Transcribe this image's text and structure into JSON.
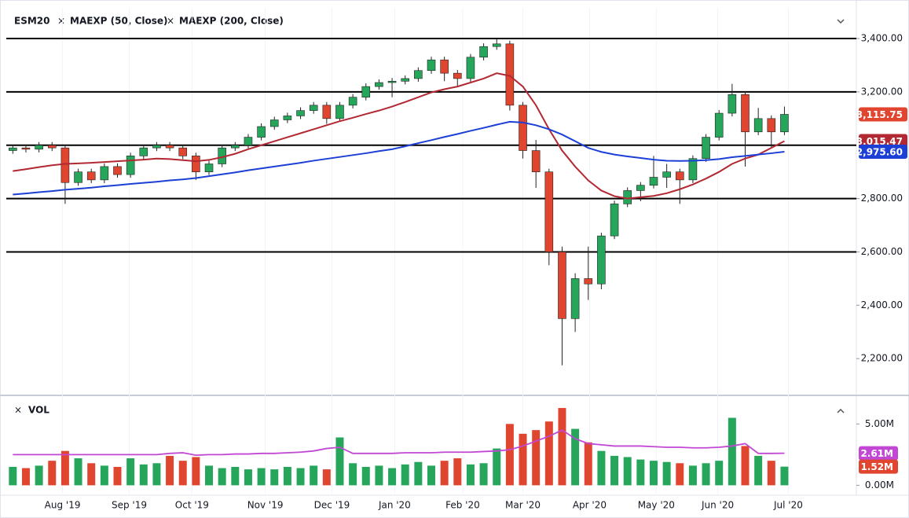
{
  "chart_data": {
    "type": "candlestick",
    "symbol": "ESM20",
    "indicators": [
      "MAEXP (50, Close)",
      "MAEXP (200, Close)"
    ],
    "volume_title": "VOL",
    "x": [
      0,
      1,
      2,
      3,
      4,
      5,
      6,
      7,
      8,
      9,
      10,
      11,
      12,
      13,
      14,
      15,
      16,
      17,
      18,
      19,
      20,
      21,
      22,
      23,
      24,
      25,
      26,
      27,
      28,
      29,
      30,
      31,
      32,
      33,
      34,
      35,
      36,
      37,
      38,
      39,
      40,
      41,
      42,
      43,
      44,
      45,
      46,
      47,
      48,
      49,
      50,
      51,
      52,
      53,
      54,
      55,
      56,
      57,
      58,
      59
    ],
    "xlim": [
      -0.5,
      64.5
    ],
    "xticks": [
      {
        "value": 3.8,
        "label": "Aug '19"
      },
      {
        "value": 8.9,
        "label": "Sep '19"
      },
      {
        "value": 13.7,
        "label": "Oct '19"
      },
      {
        "value": 19.3,
        "label": "Nov '19"
      },
      {
        "value": 24.4,
        "label": "Dec '19"
      },
      {
        "value": 29.2,
        "label": "Jan '20"
      },
      {
        "value": 34.4,
        "label": "Feb '20"
      },
      {
        "value": 39.0,
        "label": "Mar '20"
      },
      {
        "value": 44.1,
        "label": "Apr '20"
      },
      {
        "value": 49.2,
        "label": "May '20"
      },
      {
        "value": 53.9,
        "label": "Jun '20"
      },
      {
        "value": 59.3,
        "label": "Jul '20"
      }
    ],
    "ylim": [
      2071,
      3515
    ],
    "yticks": [
      {
        "value": 2200,
        "label": "2,200.00"
      },
      {
        "value": 2400,
        "label": "2,400.00"
      },
      {
        "value": 2600,
        "label": "2,600.00"
      },
      {
        "value": 2800,
        "label": "2,800.00"
      },
      {
        "value": 3200,
        "label": "3,200.00"
      },
      {
        "value": 3400,
        "label": "3,400.00"
      }
    ],
    "horizontal_lines": [
      2600,
      2800,
      3000,
      3200,
      3400
    ],
    "up_color": "#26a65b",
    "down_color": "#e0452f",
    "open": [
      2980,
      2990,
      2985,
      3000,
      2990,
      2860,
      2900,
      2870,
      2920,
      2890,
      2960,
      2990,
      3000,
      2990,
      2960,
      2900,
      2930,
      2990,
      3000,
      3030,
      3070,
      3095,
      3110,
      3130,
      3150,
      3100,
      3150,
      3180,
      3220,
      3235,
      3240,
      3250,
      3280,
      3320,
      3270,
      3250,
      3330,
      3370,
      3380,
      3150,
      2980,
      2900,
      2600,
      2350,
      2500,
      2480,
      2660,
      2780,
      2830,
      2850,
      2880,
      2900,
      2870,
      2950,
      3030,
      3120,
      3190,
      3050,
      3100,
      3050
    ],
    "high": [
      3002,
      3002,
      3012,
      3012,
      3002,
      2912,
      2912,
      2932,
      2932,
      2972,
      3002,
      3012,
      3012,
      3002,
      2972,
      2942,
      3002,
      3012,
      3042,
      3082,
      3107,
      3122,
      3142,
      3162,
      3162,
      3162,
      3192,
      3232,
      3247,
      3252,
      3262,
      3292,
      3332,
      3332,
      3282,
      3342,
      3382,
      3400,
      3392,
      3162,
      3020,
      2912,
      2620,
      2520,
      2620,
      2672,
      2792,
      2842,
      2862,
      2960,
      2930,
      2912,
      2962,
      3042,
      3132,
      3230,
      3202,
      3140,
      3112,
      3145
    ],
    "low": [
      2968,
      2973,
      2973,
      2978,
      2780,
      2848,
      2858,
      2858,
      2878,
      2878,
      2948,
      2978,
      2978,
      2948,
      2870,
      2888,
      2918,
      2978,
      2988,
      3018,
      3058,
      3083,
      3098,
      3118,
      3080,
      3088,
      3138,
      3168,
      3208,
      3180,
      3228,
      3238,
      3268,
      3240,
      3220,
      3238,
      3318,
      3358,
      3130,
      2950,
      2840,
      2550,
      2175,
      2300,
      2420,
      2460,
      2648,
      2768,
      2790,
      2838,
      2840,
      2780,
      2858,
      2938,
      3018,
      3108,
      2920,
      3038,
      2990,
      3038
    ],
    "close": [
      2990,
      2985,
      3000,
      2990,
      2860,
      2900,
      2870,
      2920,
      2890,
      2960,
      2990,
      3000,
      2990,
      2960,
      2900,
      2930,
      2990,
      3000,
      3030,
      3070,
      3095,
      3110,
      3130,
      3150,
      3100,
      3150,
      3180,
      3220,
      3235,
      3240,
      3250,
      3280,
      3320,
      3270,
      3250,
      3330,
      3370,
      3380,
      3150,
      2980,
      2900,
      2600,
      2350,
      2500,
      2480,
      2660,
      2780,
      2830,
      2850,
      2880,
      2900,
      2870,
      2950,
      3030,
      3120,
      3190,
      3050,
      3100,
      3050,
      3115.75
    ],
    "series": [
      {
        "name": "MAEXP (50, Close)",
        "color": "#b22833",
        "values": [
          2903,
          2910,
          2918,
          2925,
          2930,
          2932,
          2934,
          2937,
          2940,
          2943,
          2946,
          2950,
          2948,
          2944,
          2940,
          2945,
          2955,
          2968,
          2985,
          3000,
          3015,
          3030,
          3045,
          3060,
          3075,
          3090,
          3103,
          3117,
          3130,
          3145,
          3162,
          3180,
          3198,
          3210,
          3220,
          3235,
          3250,
          3270,
          3260,
          3220,
          3150,
          3060,
          2980,
          2920,
          2868,
          2830,
          2809,
          2800,
          2805,
          2810,
          2820,
          2835,
          2853,
          2875,
          2900,
          2930,
          2950,
          2965,
          2990,
          3015.47
        ]
      },
      {
        "name": "MAEXP (200, Close)",
        "color": "#1c3fd6",
        "values": [
          2815,
          2819,
          2824,
          2828,
          2833,
          2837,
          2841,
          2846,
          2850,
          2855,
          2859,
          2863,
          2868,
          2872,
          2877,
          2884,
          2891,
          2898,
          2906,
          2913,
          2920,
          2927,
          2934,
          2942,
          2949,
          2956,
          2963,
          2970,
          2978,
          2985,
          2996,
          3008,
          3019,
          3031,
          3042,
          3054,
          3065,
          3077,
          3088,
          3085,
          3075,
          3060,
          3040,
          3015,
          2990,
          2975,
          2965,
          2958,
          2952,
          2946,
          2942,
          2941,
          2942,
          2944,
          2948,
          2955,
          2960,
          2965,
          2970,
          2975.6
        ]
      }
    ],
    "price_labels": [
      {
        "value": 3115.75,
        "label": "3,115.75",
        "color": "#e0452f"
      },
      {
        "value": 3015.47,
        "label": "3,015.47",
        "color": "#b22833"
      },
      {
        "value": 2975.6,
        "label": "2,975.60",
        "color": "#1c3fd6"
      }
    ],
    "volume": [
      1.5,
      1.4,
      1.6,
      2.0,
      2.8,
      2.2,
      1.8,
      1.6,
      1.5,
      2.2,
      1.7,
      1.8,
      2.4,
      2.0,
      2.3,
      1.6,
      1.4,
      1.5,
      1.3,
      1.4,
      1.3,
      1.5,
      1.4,
      1.6,
      1.3,
      3.9,
      1.8,
      1.5,
      1.6,
      1.4,
      1.7,
      1.9,
      1.6,
      2.0,
      2.2,
      1.7,
      1.8,
      3.0,
      5.0,
      4.2,
      4.5,
      5.2,
      6.3,
      4.6,
      3.5,
      2.8,
      2.4,
      2.3,
      2.1,
      2.0,
      1.9,
      1.8,
      1.6,
      1.8,
      2.0,
      5.5,
      3.2,
      2.4,
      2.0,
      1.52
    ],
    "volume_ma": {
      "color": "#c147d4",
      "values": [
        2.5,
        2.5,
        2.5,
        2.5,
        2.5,
        2.5,
        2.5,
        2.5,
        2.5,
        2.5,
        2.5,
        2.5,
        2.6,
        2.65,
        2.45,
        2.5,
        2.5,
        2.55,
        2.55,
        2.6,
        2.6,
        2.65,
        2.7,
        2.8,
        3.0,
        3.1,
        2.6,
        2.6,
        2.6,
        2.6,
        2.65,
        2.65,
        2.65,
        2.7,
        2.7,
        2.7,
        2.75,
        2.8,
        2.9,
        3.2,
        3.6,
        4.0,
        4.5,
        3.8,
        3.4,
        3.3,
        3.2,
        3.2,
        3.2,
        3.15,
        3.1,
        3.1,
        3.05,
        3.05,
        3.1,
        3.2,
        3.4,
        2.6,
        2.6,
        2.61
      ]
    },
    "volume_ylim": [
      -0.68,
      7.2
    ],
    "volume_yticks": [
      {
        "value": 0,
        "label": "0.00M"
      },
      {
        "value": 5,
        "label": "5.00M"
      }
    ],
    "volume_labels": [
      {
        "value": 2.61,
        "label": "2.61M",
        "color": "#c147d4"
      },
      {
        "value": 1.52,
        "label": "1.52M",
        "color": "#e0452f"
      }
    ]
  }
}
